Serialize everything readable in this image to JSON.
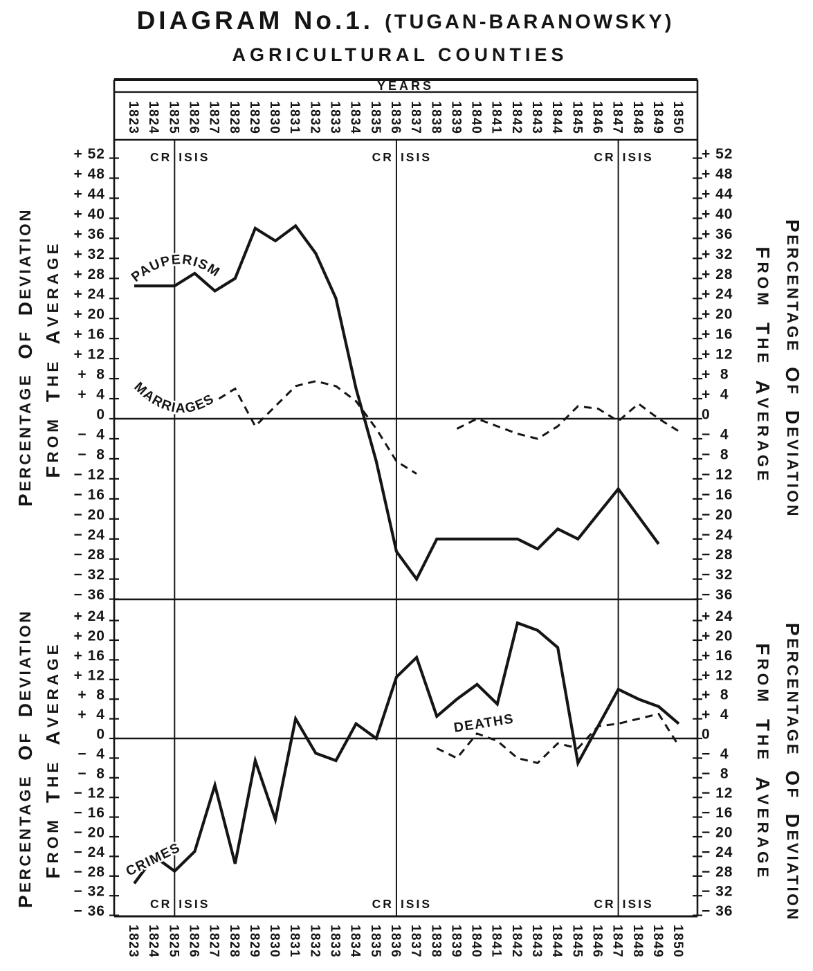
{
  "title": {
    "main": "DIAGRAM No.1.",
    "paren": "(TUGAN-BARANOWSKY)"
  },
  "subtitle": "AGRICULTURAL COUNTIES",
  "years_axis_title": "YEARS",
  "crisis_label": "CRISIS",
  "axis_title_outer": "PERCENTAGE OF DEVIATION",
  "axis_title_inner": "FROM THE AVERAGE",
  "ink_color": "#151515",
  "paper_color": "#ffffff",
  "chart_data": [
    {
      "type": "line",
      "panel": "top",
      "ylabel": "PERCENTAGE OF DEVIATION FROM THE AVERAGE",
      "years": [
        1823,
        1824,
        1825,
        1826,
        1827,
        1828,
        1829,
        1830,
        1831,
        1832,
        1833,
        1834,
        1835,
        1836,
        1837,
        1838,
        1839,
        1840,
        1841,
        1842,
        1843,
        1844,
        1845,
        1846,
        1847,
        1848,
        1849,
        1850
      ],
      "crisis_years": [
        1825,
        1836,
        1847
      ],
      "ylim": [
        -36,
        55
      ],
      "yticks": [
        52,
        48,
        44,
        40,
        36,
        32,
        28,
        24,
        20,
        16,
        12,
        8,
        4,
        0,
        -4,
        -8,
        -12,
        -16,
        -20,
        -24,
        -28,
        -32,
        -36
      ],
      "grid": "zero-line and crisis verticals only",
      "series": [
        {
          "name": "PAUPERISM",
          "style": "solid",
          "values": [
            26.5,
            26.5,
            26.5,
            29,
            25.5,
            28,
            38,
            35.5,
            38.5,
            33,
            24,
            6,
            -8.5,
            -26.5,
            -32,
            -24,
            -24,
            -24,
            -24,
            -24,
            -26,
            -22,
            -24,
            -19,
            -14,
            -19.5,
            -25,
            null
          ]
        },
        {
          "name": "MARRIAGES",
          "style": "dashed",
          "values": [
            6,
            3,
            2.5,
            2,
            3.5,
            6,
            -1.5,
            2.5,
            6.5,
            7.5,
            6.5,
            3.5,
            -2,
            -8.5,
            -11,
            null,
            -2,
            0,
            -1.5,
            -3,
            -4,
            -1.5,
            2.5,
            2,
            -0.5,
            3,
            0,
            -2.5
          ]
        }
      ]
    },
    {
      "type": "line",
      "panel": "bottom",
      "ylabel": "PERCENTAGE OF DEVIATION FROM THE AVERAGE",
      "years": [
        1823,
        1824,
        1825,
        1826,
        1827,
        1828,
        1829,
        1830,
        1831,
        1832,
        1833,
        1834,
        1835,
        1836,
        1837,
        1838,
        1839,
        1840,
        1841,
        1842,
        1843,
        1844,
        1845,
        1846,
        1847,
        1848,
        1849,
        1850
      ],
      "crisis_years": [
        1825,
        1836,
        1847
      ],
      "ylim": [
        -36,
        28.5
      ],
      "yticks": [
        24,
        20,
        16,
        12,
        8,
        4,
        0,
        -4,
        -8,
        -12,
        -16,
        -20,
        -24,
        -28,
        -32,
        -36
      ],
      "grid": "zero-line and crisis verticals only",
      "series": [
        {
          "name": "CRIMES",
          "style": "solid",
          "values": [
            -29.5,
            -24,
            -27,
            -23,
            -9.5,
            -25.5,
            -4.5,
            -16.5,
            4,
            -3,
            -4.5,
            3,
            0,
            12.5,
            16.5,
            4.5,
            8,
            11,
            7,
            23.5,
            22,
            18.5,
            -5,
            2.5,
            10,
            8,
            6.5,
            3
          ]
        },
        {
          "name": "DEATHS",
          "style": "dashed",
          "values": [
            null,
            null,
            null,
            null,
            null,
            null,
            null,
            null,
            null,
            null,
            null,
            null,
            null,
            null,
            null,
            -2,
            -4,
            1,
            -0.5,
            -4,
            -5,
            -1,
            -2,
            2.5,
            3,
            4,
            5,
            -1.5
          ]
        }
      ]
    }
  ]
}
